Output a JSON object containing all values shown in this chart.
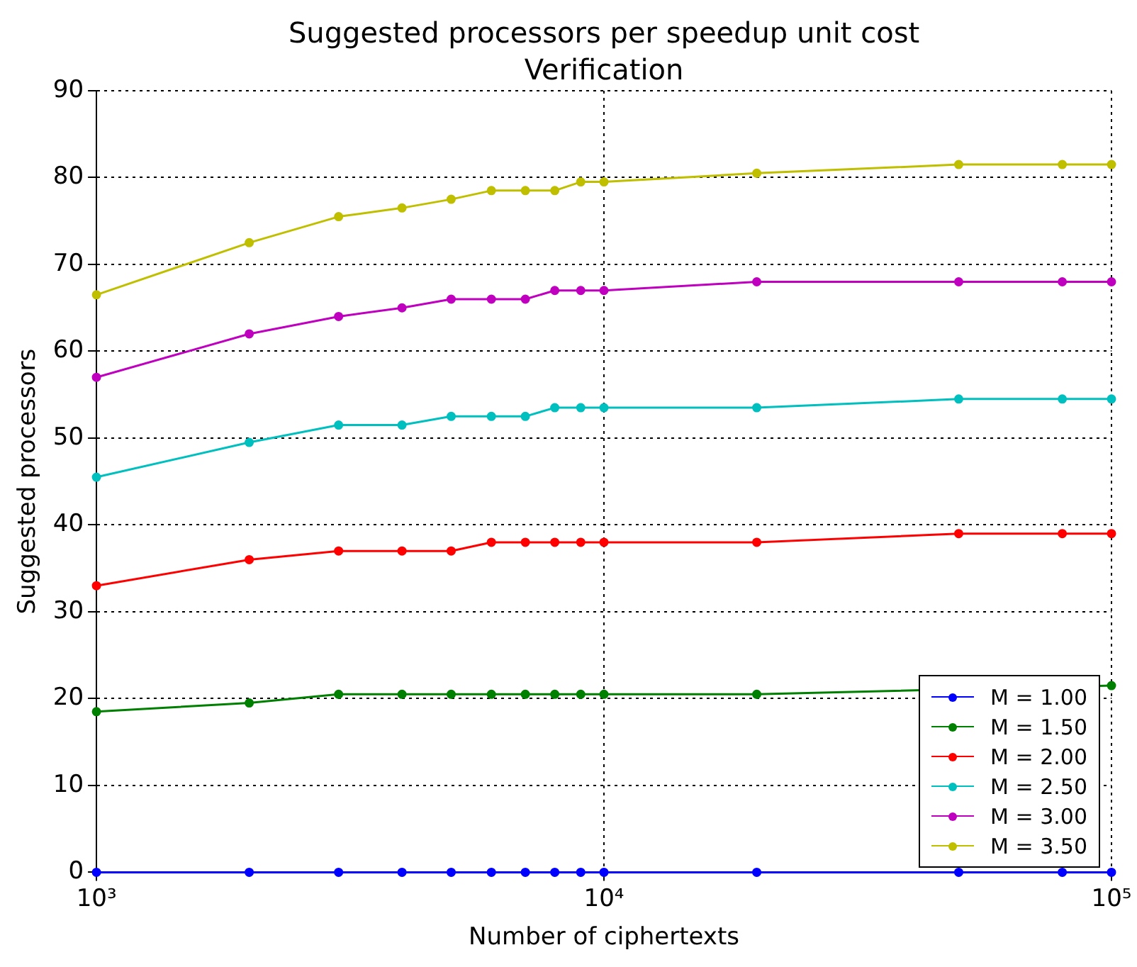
{
  "chart_data": {
    "type": "line",
    "title": "Suggested processors per speedup unit cost",
    "subtitle": "Verification",
    "xlabel": "Number of ciphertexts",
    "ylabel": "Suggested processors",
    "x": [
      1000,
      2000,
      3000,
      4000,
      5000,
      6000,
      7000,
      8000,
      9000,
      10000,
      20000,
      50000,
      80000,
      100000
    ],
    "series": [
      {
        "name": "M = 1.00",
        "color": "#0000ff",
        "values": [
          0,
          0,
          0,
          0,
          0,
          0,
          0,
          0,
          0,
          0,
          0,
          0,
          0,
          0
        ]
      },
      {
        "name": "M = 1.50",
        "color": "#008000",
        "values": [
          18.5,
          19.5,
          20.5,
          20.5,
          20.5,
          20.5,
          20.5,
          20.5,
          20.5,
          20.5,
          20.5,
          null,
          null,
          21.5
        ]
      },
      {
        "name": "M = 2.00",
        "color": "#ff0000",
        "values": [
          33,
          36,
          37,
          37,
          37,
          38,
          38,
          38,
          38,
          38,
          38,
          39,
          39,
          39
        ]
      },
      {
        "name": "M = 2.50",
        "color": "#00bfbf",
        "values": [
          45.5,
          49.5,
          51.5,
          51.5,
          52.5,
          52.5,
          52.5,
          53.5,
          53.5,
          53.5,
          53.5,
          54.5,
          54.5,
          54.5
        ]
      },
      {
        "name": "M = 3.00",
        "color": "#bf00bf",
        "values": [
          57,
          62,
          64,
          65,
          66,
          66,
          66,
          67,
          67,
          67,
          68,
          68,
          68,
          68
        ]
      },
      {
        "name": "M = 3.50",
        "color": "#bfbf00",
        "values": [
          66.5,
          72.5,
          75.5,
          76.5,
          77.5,
          78.5,
          78.5,
          78.5,
          79.5,
          79.5,
          80.5,
          81.5,
          81.5,
          81.5
        ]
      }
    ],
    "log": "x",
    "xlim": [
      1000,
      100000
    ],
    "xticks": [
      {
        "value": 1000,
        "label": "10³"
      },
      {
        "value": 10000,
        "label": "10⁴"
      },
      {
        "value": 100000,
        "label": "10⁵"
      }
    ],
    "ylim": [
      0,
      90
    ],
    "yticks": [
      0,
      10,
      20,
      30,
      40,
      50,
      60,
      70,
      80,
      90
    ],
    "grid": true,
    "legend": "bottom right",
    "marker": "circle",
    "line_style": "solid"
  }
}
